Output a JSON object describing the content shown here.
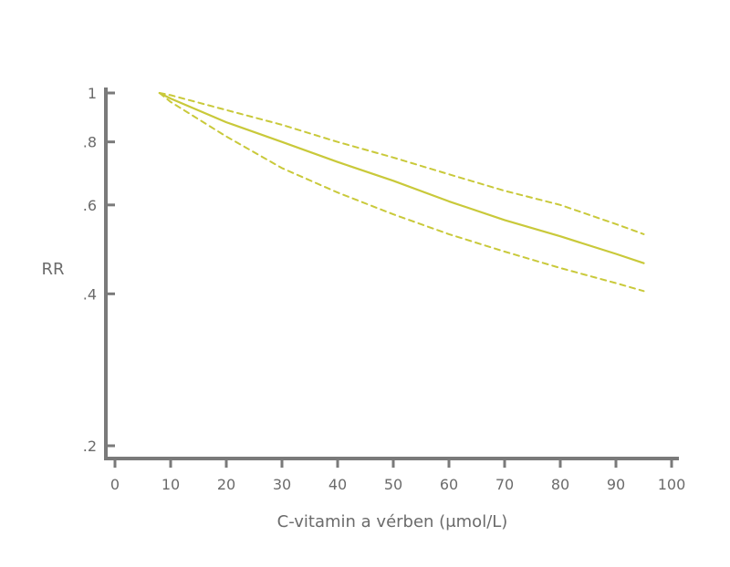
{
  "chart_data": {
    "type": "line",
    "title": "",
    "xlabel": "C-vitamin a vérben (μmol/L)",
    "ylabel": "RR",
    "xlim": [
      0,
      100
    ],
    "ylim": [
      0.18,
      1.02
    ],
    "yscale": "log",
    "x_ticks": [
      0,
      10,
      20,
      30,
      40,
      50,
      60,
      70,
      80,
      90,
      100
    ],
    "x_tick_labels": [
      "0",
      "10",
      "20",
      "30",
      "40",
      "50",
      "60",
      "70",
      "80",
      "90",
      "100"
    ],
    "y_ticks": [
      1,
      0.8,
      0.6,
      0.4,
      0.2
    ],
    "y_tick_labels": [
      "1",
      ".8",
      ".6",
      ".4",
      ".2"
    ],
    "grid": false,
    "legend": "none",
    "series": [
      {
        "role": "estimate",
        "style": "solid",
        "color": "#c9c93a",
        "x": [
          8,
          10,
          20,
          30,
          40,
          50,
          60,
          70,
          80,
          90,
          95
        ],
        "y": [
          1.0,
          0.975,
          0.875,
          0.8,
          0.73,
          0.67,
          0.61,
          0.56,
          0.52,
          0.48,
          0.46
        ]
      },
      {
        "role": "upper-ci",
        "style": "dashed",
        "color": "#c9c93a",
        "x": [
          8,
          10,
          20,
          30,
          40,
          50,
          60,
          70,
          80,
          90,
          95
        ],
        "y": [
          1.0,
          0.99,
          0.925,
          0.865,
          0.8,
          0.745,
          0.69,
          0.64,
          0.6,
          0.55,
          0.525
        ]
      },
      {
        "role": "lower-ci",
        "style": "dashed",
        "color": "#c9c93a",
        "x": [
          8,
          10,
          20,
          30,
          40,
          50,
          60,
          70,
          80,
          90,
          95
        ],
        "y": [
          1.0,
          0.96,
          0.82,
          0.71,
          0.635,
          0.575,
          0.525,
          0.485,
          0.45,
          0.42,
          0.405
        ]
      }
    ]
  }
}
